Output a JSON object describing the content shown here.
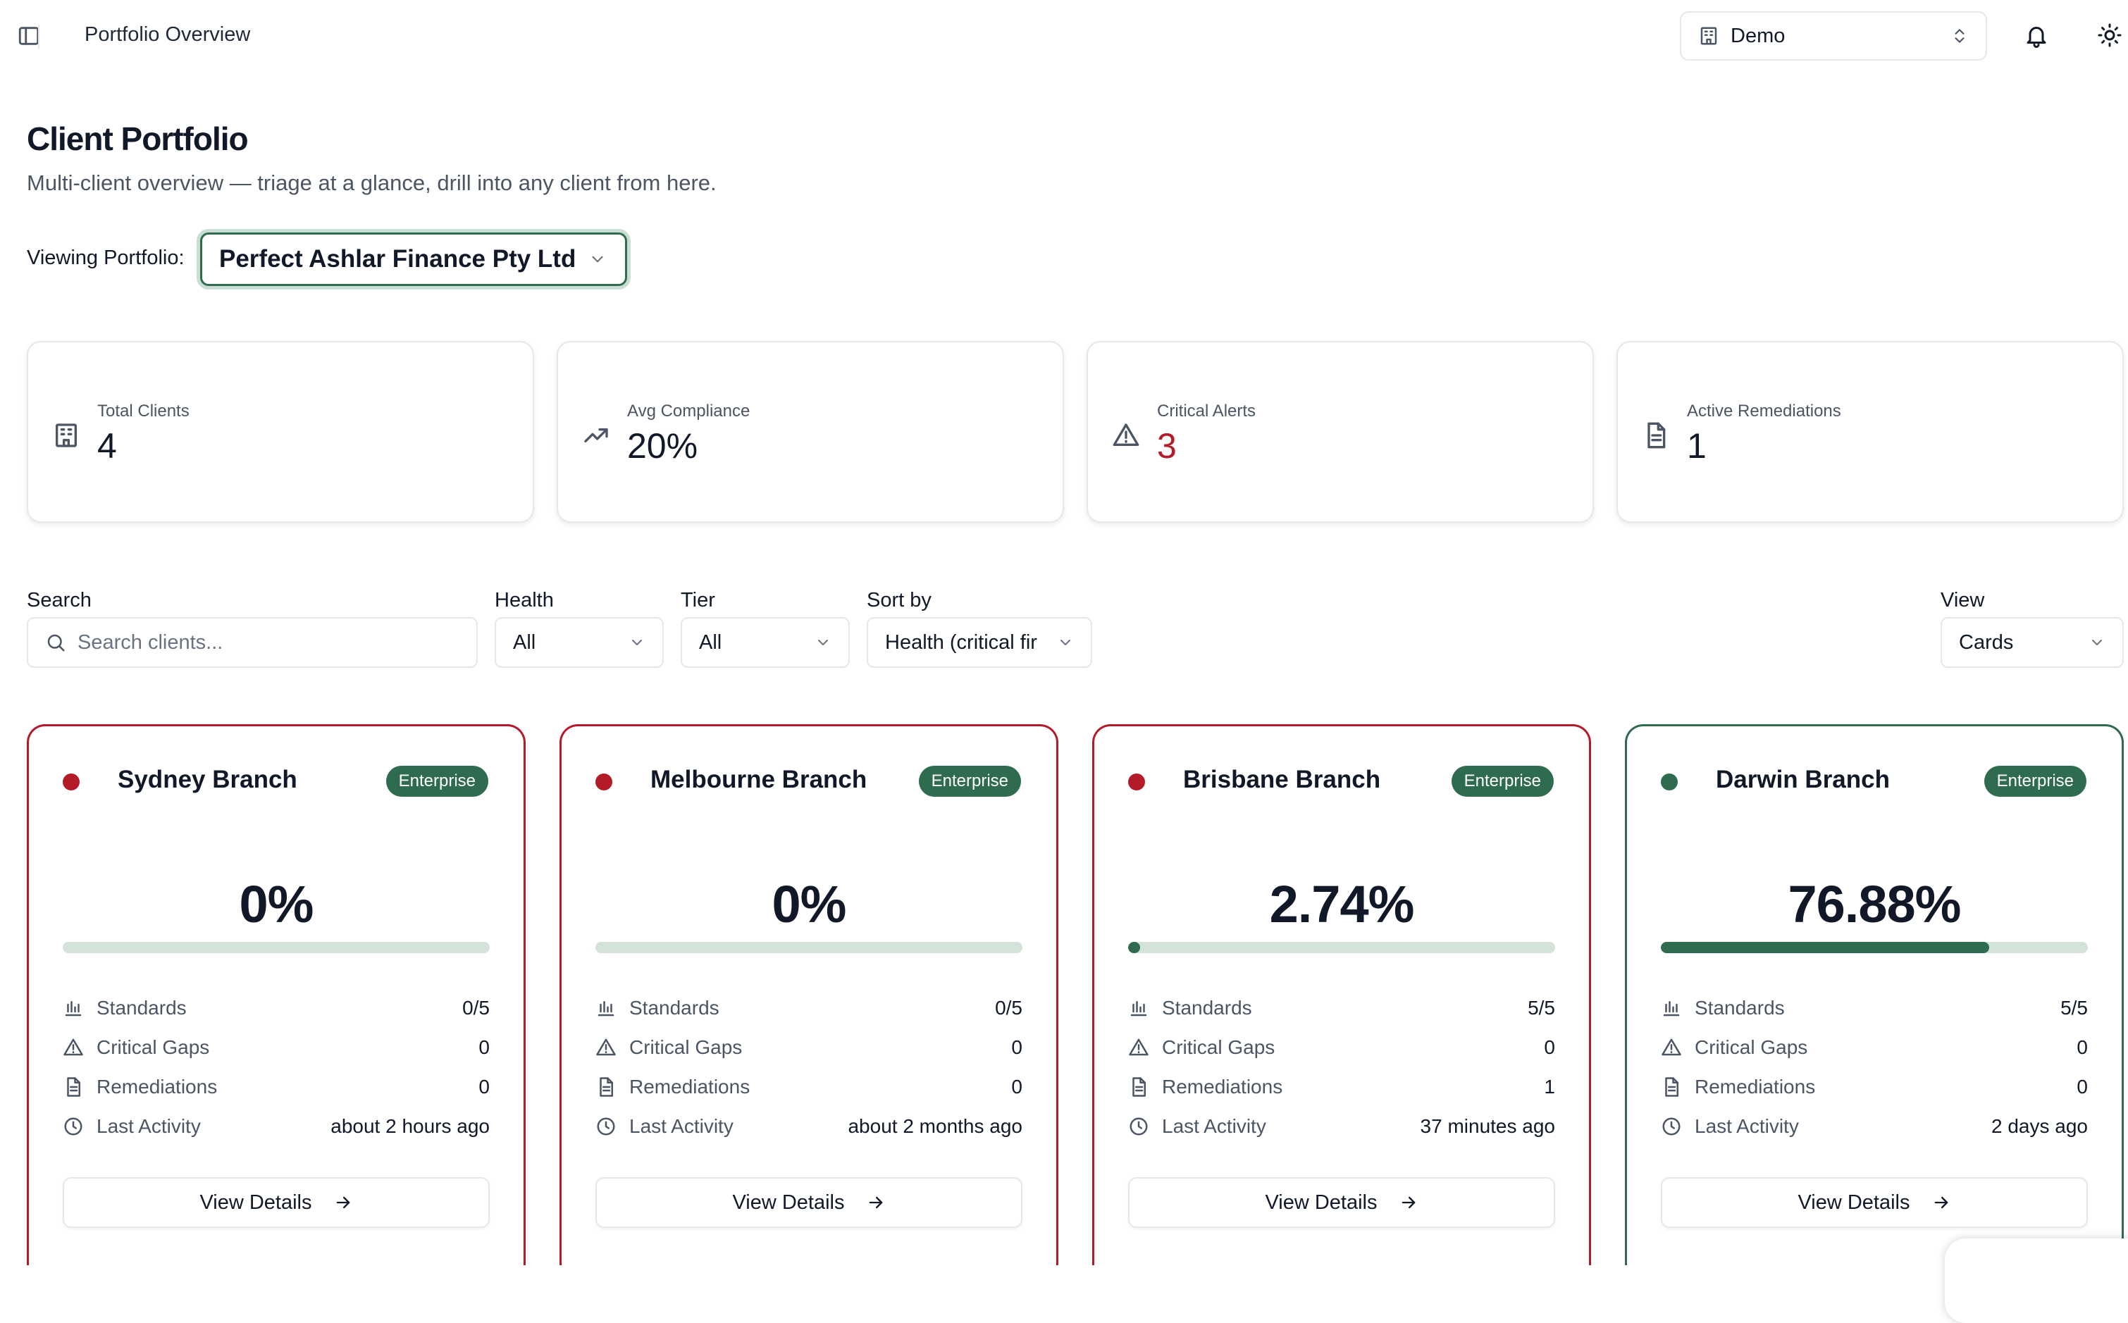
{
  "topbar": {
    "breadcrumb": "Portfolio Overview",
    "org_select": "Demo",
    "icons": [
      "sidebar-toggle-icon",
      "building-icon",
      "chevron-up-down-icon",
      "bell-icon",
      "sun-icon"
    ]
  },
  "header": {
    "title": "Client Portfolio",
    "subtitle": "Multi-client overview — triage at a glance, drill into any client from here."
  },
  "portfolio": {
    "label": "Viewing Portfolio:",
    "selected": "Perfect Ashlar Finance Pty Ltd"
  },
  "stats": [
    {
      "label": "Total Clients",
      "value": "4",
      "icon": "building-icon"
    },
    {
      "label": "Avg Compliance",
      "value": "20%",
      "icon": "trending-up-icon"
    },
    {
      "label": "Critical Alerts",
      "value": "3",
      "icon": "alert-triangle-icon",
      "color": "#b31b29"
    },
    {
      "label": "Active Remediations",
      "value": "1",
      "icon": "file-text-icon"
    }
  ],
  "filters": {
    "search": {
      "label": "Search",
      "placeholder": "Search clients..."
    },
    "health": {
      "label": "Health",
      "value": "All"
    },
    "tier": {
      "label": "Tier",
      "value": "All"
    },
    "sort": {
      "label": "Sort by",
      "value": "Health (critical fir"
    },
    "view": {
      "label": "View",
      "value": "Cards"
    }
  },
  "row_labels": {
    "standards": "Standards",
    "critical_gaps": "Critical Gaps",
    "remediations": "Remediations",
    "last_activity": "Last Activity"
  },
  "button_label": "View Details",
  "clients": [
    {
      "name": "Sydney Branch",
      "tier": "Enterprise",
      "status": "critical",
      "compliance": "0%",
      "compliance_value": 0,
      "standards": "0/5",
      "critical_gaps": "0",
      "remediations": "0",
      "last_activity": "about 2 hours ago"
    },
    {
      "name": "Melbourne Branch",
      "tier": "Enterprise",
      "status": "critical",
      "compliance": "0%",
      "compliance_value": 0,
      "standards": "0/5",
      "critical_gaps": "0",
      "remediations": "0",
      "last_activity": "about 2 months ago"
    },
    {
      "name": "Brisbane Branch",
      "tier": "Enterprise",
      "status": "critical",
      "compliance": "2.74%",
      "compliance_value": 2.74,
      "standards": "5/5",
      "critical_gaps": "0",
      "remediations": "1",
      "last_activity": "37 minutes ago"
    },
    {
      "name": "Darwin Branch",
      "tier": "Enterprise",
      "status": "healthy",
      "compliance": "76.88%",
      "compliance_value": 76.88,
      "standards": "5/5",
      "critical_gaps": "0",
      "remediations": "0",
      "last_activity": "2 days ago"
    }
  ],
  "colors": {
    "critical": "#b31b29",
    "healthy": "#2f6b4f",
    "track": "#d4e3da"
  }
}
